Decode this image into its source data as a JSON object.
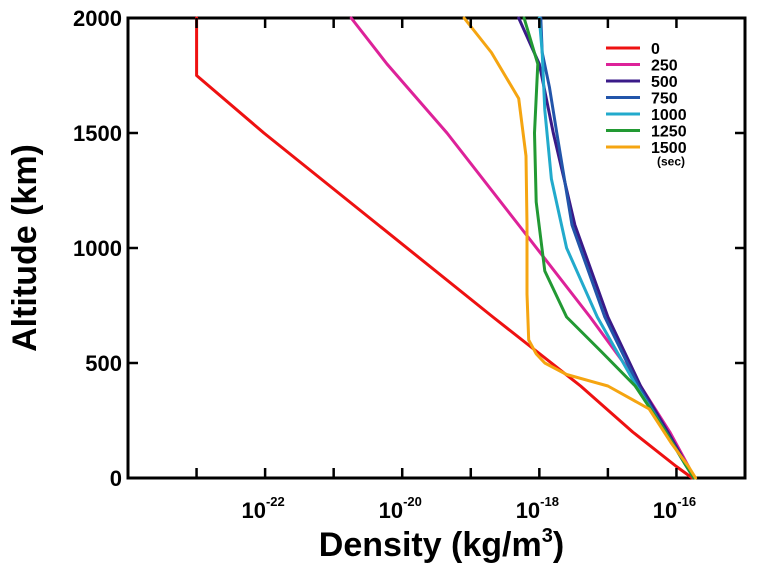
{
  "chart_data": {
    "type": "line",
    "xlabel": "Density (kg/m",
    "xlabel_sup": "3",
    "xlabel_close": ")",
    "ylabel": "Altitude (km)",
    "xscale": "log",
    "xlim": [
      1e-24,
      1e-15
    ],
    "ylim": [
      0,
      2000
    ],
    "grid": false,
    "legend_position": "top-right",
    "legend_note": "(sec)",
    "y_ticks": [
      {
        "value": 0,
        "label": "0"
      },
      {
        "value": 500,
        "label": "500"
      },
      {
        "value": 1000,
        "label": "1000"
      },
      {
        "value": 1500,
        "label": "1500"
      },
      {
        "value": 2000,
        "label": "2000"
      }
    ],
    "x_ticks": [
      {
        "value": 1e-22,
        "base": "10",
        "exp": "-22"
      },
      {
        "value": 1e-20,
        "base": "10",
        "exp": "-20"
      },
      {
        "value": 1e-18,
        "base": "10",
        "exp": "-18"
      },
      {
        "value": 1e-16,
        "base": "10",
        "exp": "-16"
      }
    ],
    "series": [
      {
        "name": "0",
        "color": "#ee1111",
        "points": [
          [
            1.7e-16,
            0
          ],
          [
            1e-16,
            50
          ],
          [
            2.3e-17,
            200
          ],
          [
            4e-18,
            400
          ],
          [
            2.1e-19,
            700
          ],
          [
            4.5e-21,
            1100
          ],
          [
            9.6e-23,
            1500
          ],
          [
            1e-23,
            1750
          ],
          [
            1e-23,
            2000
          ]
        ]
      },
      {
        "name": "250",
        "color": "#dd2299",
        "points": [
          [
            1.8e-16,
            0
          ],
          [
            1.5e-16,
            50
          ],
          [
            8e-17,
            200
          ],
          [
            3e-17,
            400
          ],
          [
            5.5e-18,
            700
          ],
          [
            5e-19,
            1100
          ],
          [
            4.5e-20,
            1500
          ],
          [
            6e-21,
            1800
          ],
          [
            1.8e-21,
            2000
          ]
        ]
      },
      {
        "name": "500",
        "color": "#3a1a88",
        "points": [
          [
            1.8e-16,
            0
          ],
          [
            1.45e-16,
            50
          ],
          [
            7.5e-17,
            200
          ],
          [
            3e-17,
            400
          ],
          [
            1e-17,
            700
          ],
          [
            3.3e-18,
            1100
          ],
          [
            1.6e-18,
            1500
          ],
          [
            1e-18,
            1800
          ],
          [
            5e-19,
            2000
          ]
        ]
      },
      {
        "name": "750",
        "color": "#2255aa",
        "points": [
          [
            1.8e-16,
            0
          ],
          [
            1.4e-16,
            50
          ],
          [
            7e-17,
            200
          ],
          [
            2.8e-17,
            400
          ],
          [
            9e-18,
            700
          ],
          [
            3e-18,
            1100
          ],
          [
            1.8e-18,
            1500
          ],
          [
            1.4e-18,
            1700
          ],
          [
            1.1e-18,
            1850
          ],
          [
            1.05e-18,
            2000
          ]
        ]
      },
      {
        "name": "1000",
        "color": "#22aacc",
        "points": [
          [
            1.8e-16,
            0
          ],
          [
            1.4e-16,
            50
          ],
          [
            7e-17,
            200
          ],
          [
            2.6e-17,
            400
          ],
          [
            7e-18,
            700
          ],
          [
            2.5e-18,
            1000
          ],
          [
            1.5e-18,
            1300
          ],
          [
            1.2e-18,
            1600
          ],
          [
            1.1e-18,
            1850
          ],
          [
            1e-18,
            2000
          ]
        ]
      },
      {
        "name": "1250",
        "color": "#229933",
        "points": [
          [
            1.8e-16,
            0
          ],
          [
            1.4e-16,
            50
          ],
          [
            7e-17,
            200
          ],
          [
            2.5e-17,
            400
          ],
          [
            8e-18,
            550
          ],
          [
            2.5e-18,
            700
          ],
          [
            1.2e-18,
            900
          ],
          [
            9e-19,
            1200
          ],
          [
            8.5e-19,
            1500
          ],
          [
            9.5e-19,
            1800
          ],
          [
            6e-19,
            2000
          ]
        ]
      },
      {
        "name": "1500",
        "color": "#f5a511",
        "points": [
          [
            1.9e-16,
            0
          ],
          [
            1.5e-16,
            50
          ],
          [
            8.5e-17,
            150
          ],
          [
            4e-17,
            300
          ],
          [
            1e-17,
            400
          ],
          [
            2.5e-18,
            450
          ],
          [
            1.2e-18,
            500
          ],
          [
            9e-19,
            540
          ],
          [
            7e-19,
            600
          ],
          [
            6.6e-19,
            800
          ],
          [
            6.6e-19,
            1100
          ],
          [
            6.4e-19,
            1400
          ],
          [
            5e-19,
            1650
          ],
          [
            2e-19,
            1850
          ],
          [
            8e-20,
            2000
          ]
        ]
      }
    ]
  }
}
